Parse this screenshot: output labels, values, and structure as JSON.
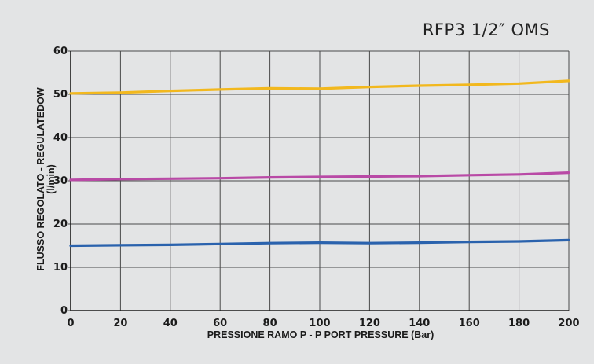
{
  "chart_data": {
    "type": "line",
    "title": "RFP3 1/2″ OMS",
    "xlabel": "PRESSIONE RAMO P - P PORT PRESSURE (Bar)",
    "ylabel_line1": "FLUSSO REGOLATO - REGULATEDOW",
    "ylabel_line2": "(l/min)",
    "xlim": [
      0,
      200
    ],
    "ylim": [
      0,
      60
    ],
    "x_ticks": [
      0,
      20,
      40,
      60,
      80,
      100,
      120,
      140,
      160,
      180,
      200
    ],
    "y_ticks": [
      0,
      10,
      20,
      30,
      40,
      50,
      60
    ],
    "grid": true,
    "series": [
      {
        "color": "#f2b81e",
        "x": [
          0,
          20,
          40,
          60,
          80,
          100,
          120,
          140,
          160,
          180,
          200
        ],
        "values": [
          50.2,
          50.4,
          50.8,
          51.1,
          51.4,
          51.3,
          51.7,
          52.0,
          52.2,
          52.5,
          53.1
        ]
      },
      {
        "color": "#b94aa6",
        "x": [
          0,
          20,
          40,
          60,
          80,
          100,
          120,
          140,
          160,
          180,
          200
        ],
        "values": [
          30.2,
          30.4,
          30.5,
          30.6,
          30.8,
          30.9,
          31.0,
          31.1,
          31.3,
          31.5,
          31.9
        ]
      },
      {
        "color": "#2a62ad",
        "x": [
          0,
          20,
          40,
          60,
          80,
          100,
          120,
          140,
          160,
          180,
          200
        ],
        "values": [
          15.0,
          15.1,
          15.2,
          15.4,
          15.6,
          15.7,
          15.6,
          15.7,
          15.9,
          16.0,
          16.3
        ]
      }
    ]
  }
}
